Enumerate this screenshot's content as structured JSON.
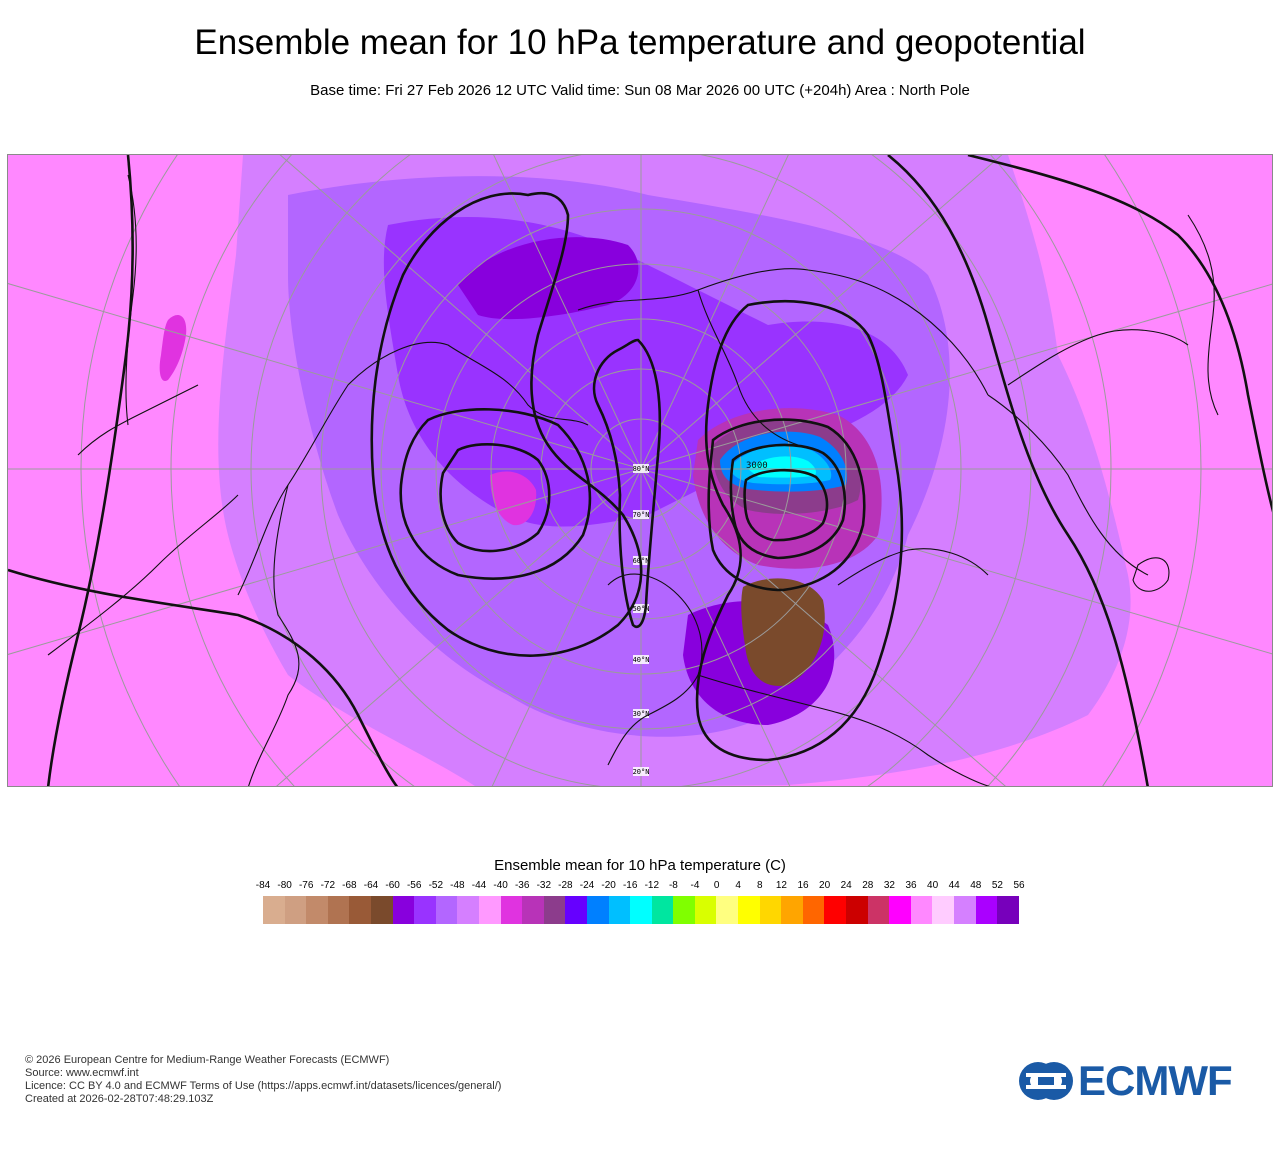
{
  "header": {
    "title": "Ensemble mean for 10 hPa temperature and geopotential",
    "subtitle": "Base time: Fri 27 Feb 2026 12 UTC Valid time: Sun 08 Mar 2026 00 UTC (+204h) Area : North Pole"
  },
  "map": {
    "contour_label": "3000",
    "latitude_labels": [
      "80°N",
      "70°N",
      "60°N",
      "50°N",
      "40°N",
      "30°N",
      "20°N"
    ]
  },
  "legend": {
    "title": "Ensemble mean for 10 hPa temperature (C)",
    "ticks": [
      "-84",
      "-80",
      "-76",
      "-72",
      "-68",
      "-64",
      "-60",
      "-56",
      "-52",
      "-48",
      "-44",
      "-40",
      "-36",
      "-32",
      "-28",
      "-24",
      "-20",
      "-16",
      "-12",
      "-8",
      "-4",
      "0",
      "4",
      "8",
      "12",
      "16",
      "20",
      "24",
      "28",
      "32",
      "36",
      "40",
      "44",
      "48",
      "52",
      "56"
    ],
    "colors": [
      "#d9ad8f",
      "#cf9f82",
      "#c28a6a",
      "#b07351",
      "#995a37",
      "#7a4a2c",
      "#8800dd",
      "#9933ff",
      "#b366ff",
      "#d57fff",
      "#ff99ff",
      "#e033e0",
      "#b833b8",
      "#8c3c8c",
      "#6600ff",
      "#0080ff",
      "#00bfff",
      "#00ffff",
      "#00e6a0",
      "#80ff00",
      "#d9ff00",
      "#ffff80",
      "#ffff00",
      "#ffd700",
      "#ffa500",
      "#ff6600",
      "#ff0000",
      "#cc0000",
      "#cc3366",
      "#ff00ff",
      "#ff88ff",
      "#ffccff",
      "#d580ff",
      "#aa00ff",
      "#7700bb"
    ]
  },
  "footer": {
    "line1": "© 2026 European Centre for Medium-Range Weather Forecasts (ECMWF)",
    "line2": "Source: www.ecmwf.int",
    "line3": "Licence: CC BY 4.0 and ECMWF Terms of Use (https://apps.ecmwf.int/datasets/licences/general/)",
    "line4": "Created at 2026-02-28T07:48:29.103Z"
  },
  "logo": {
    "text": "ECMWF",
    "color": "#1a5aa6"
  }
}
